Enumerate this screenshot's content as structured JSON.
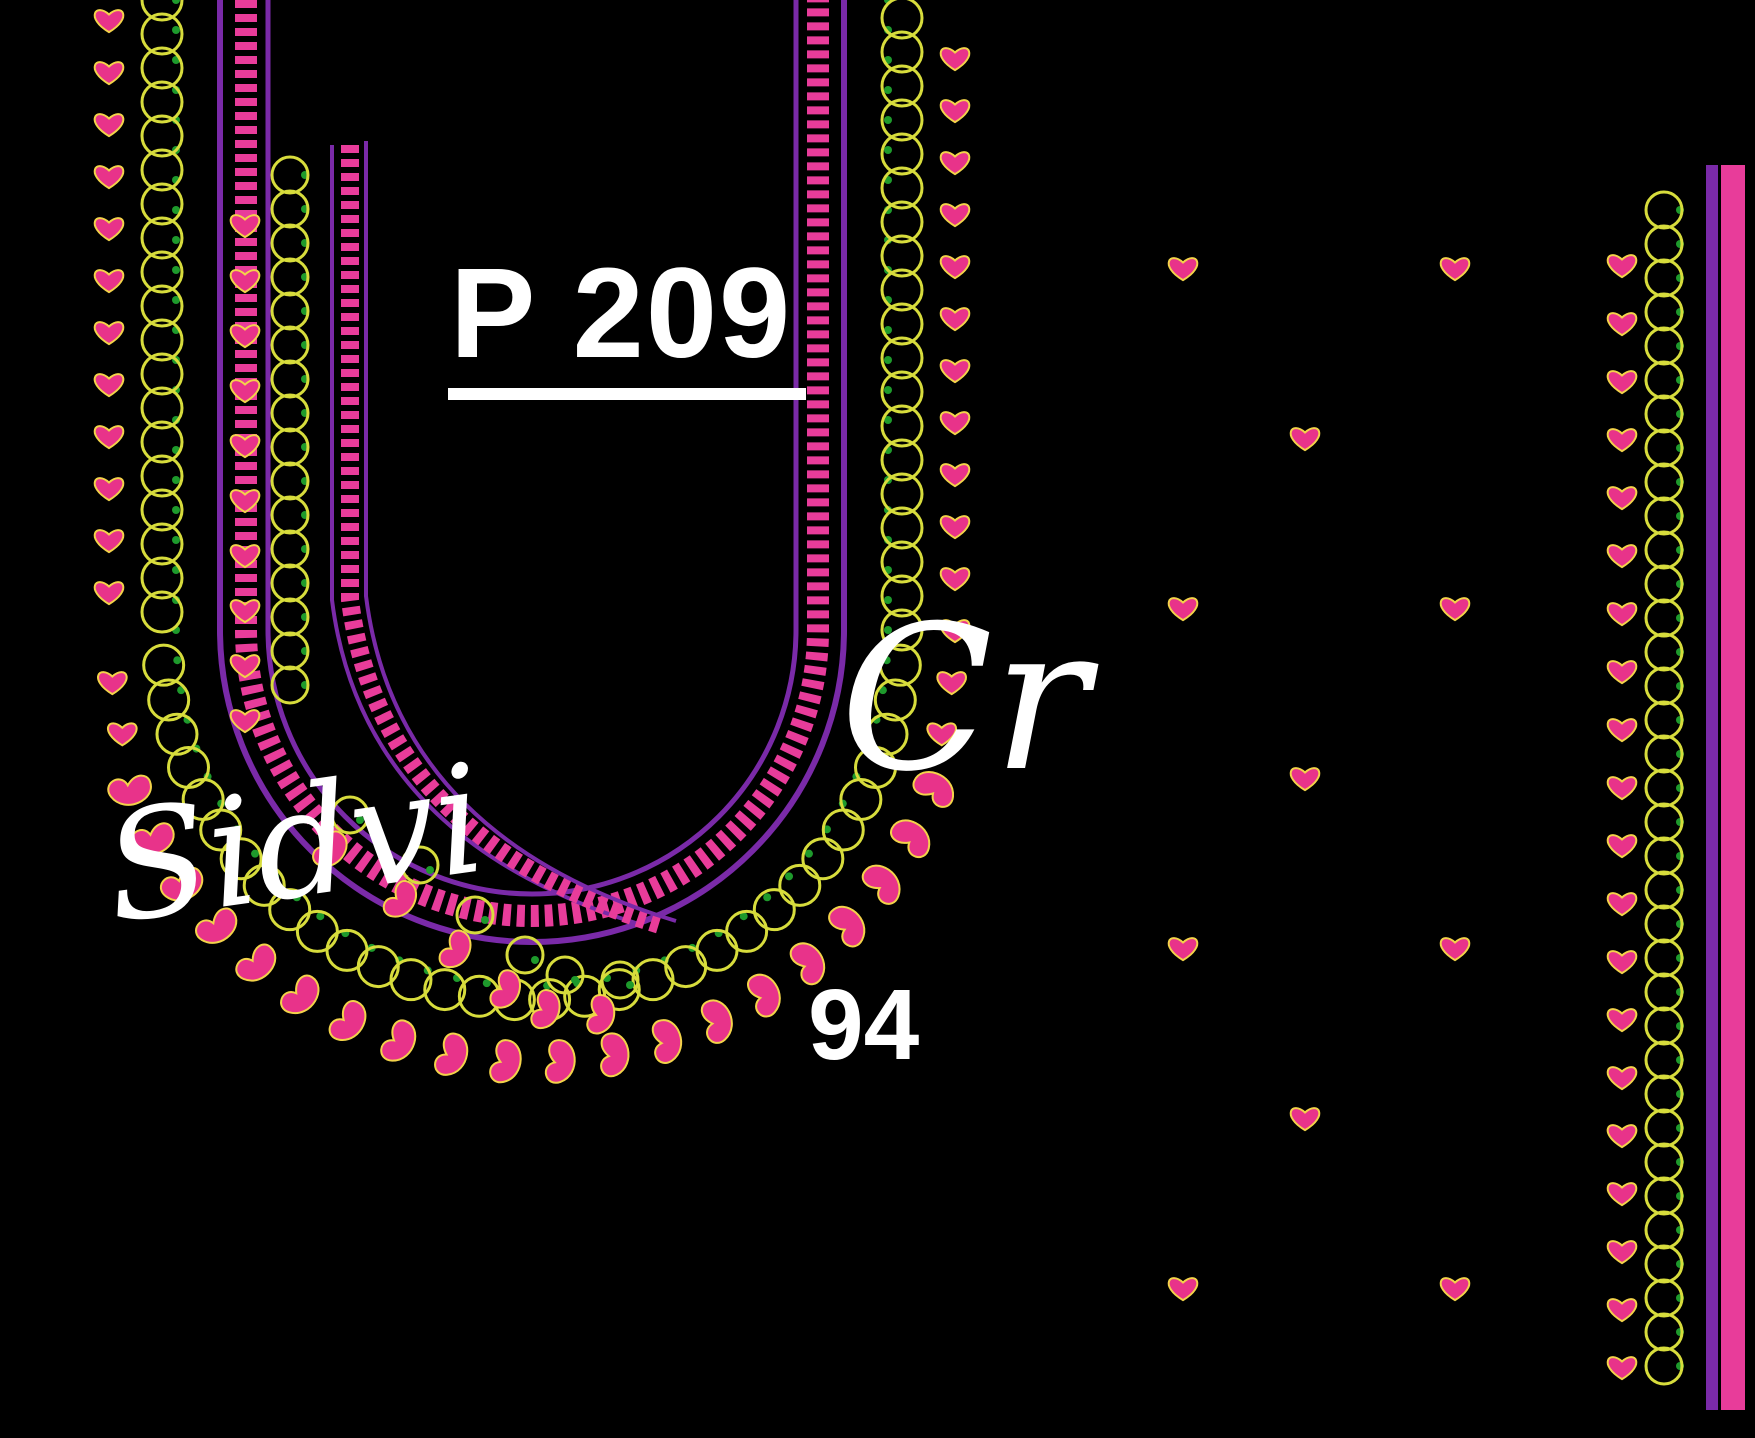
{
  "design": {
    "code": "P 209",
    "watermark_phone": "94"
  },
  "colors": {
    "background": "#000000",
    "motif_pink": "#e8338a",
    "motif_outline": "#f3d34a",
    "scallop_yellow": "#d7dc3c",
    "dot_green": "#1e9a2c",
    "border_purple": "#7a2aa8",
    "cross_pink": "#e83c9a",
    "text": "#ffffff"
  }
}
